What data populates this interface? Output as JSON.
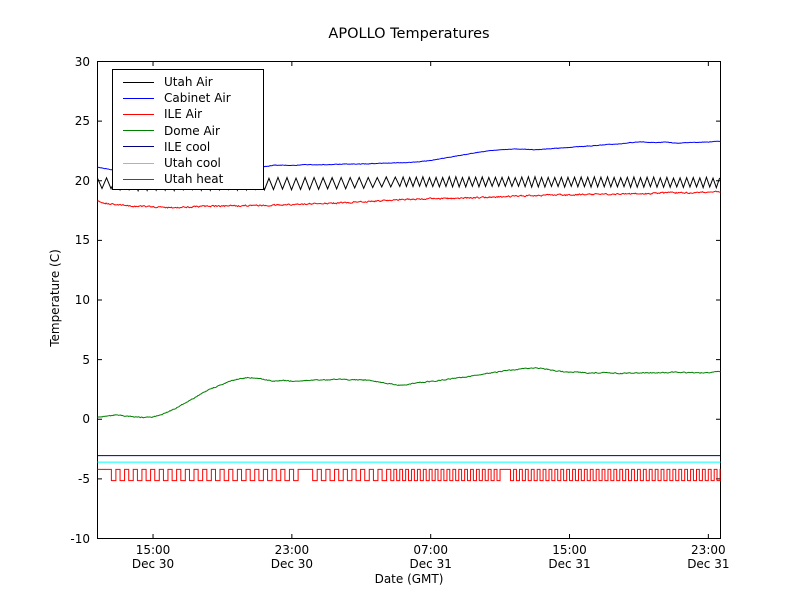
{
  "chart_data": {
    "type": "line",
    "title": "APOLLO Temperatures",
    "xlabel": "Date (GMT)",
    "ylabel": "Temperature (C)",
    "ylim": [
      -10,
      30
    ],
    "yticks": [
      {
        "v": 30,
        "label": "30"
      },
      {
        "v": 25,
        "label": "25"
      },
      {
        "v": 20,
        "label": "20"
      },
      {
        "v": 15,
        "label": "15"
      },
      {
        "v": 10,
        "label": "10"
      },
      {
        "v": 5,
        "label": "5"
      },
      {
        "v": 0,
        "label": "0"
      },
      {
        "v": -5,
        "label": "-5"
      },
      {
        "v": -10,
        "label": "-10"
      }
    ],
    "xlim": [
      -0.2,
      35.7
    ],
    "x_unit": "hours since Dec 30 12:00 GMT",
    "xticks": [
      {
        "t": 3,
        "line1": "15:00",
        "line2": "Dec 30"
      },
      {
        "t": 11,
        "line1": "23:00",
        "line2": "Dec 30"
      },
      {
        "t": 19,
        "line1": "07:00",
        "line2": "Dec 31"
      },
      {
        "t": 27,
        "line1": "15:00",
        "line2": "Dec 31"
      },
      {
        "t": 35,
        "line1": "23:00",
        "line2": "Dec 31"
      }
    ],
    "grid": false,
    "legend_position": "upper-left",
    "series": [
      {
        "name": "Utah Air",
        "color": "#000000",
        "style": "sawtooth",
        "noise": 0.04,
        "base_points": [
          [
            -0.2,
            19.8
          ],
          [
            2,
            19.65
          ],
          [
            6,
            19.7
          ],
          [
            10,
            19.75
          ],
          [
            14,
            19.8
          ],
          [
            17,
            19.9
          ],
          [
            22,
            19.9
          ],
          [
            28,
            19.9
          ],
          [
            35.7,
            19.85
          ]
        ],
        "amp_points": [
          [
            -0.2,
            0.45
          ],
          [
            10,
            0.5
          ],
          [
            15,
            0.45
          ],
          [
            18,
            0.4
          ],
          [
            35.7,
            0.4
          ]
        ],
        "period_segments": [
          {
            "to": 17,
            "period": 0.52
          },
          {
            "to": 35.8,
            "period": 0.38
          }
        ]
      },
      {
        "name": "Cabinet Air",
        "color": "#0000ff",
        "style": "smooth",
        "noise": 0.02,
        "points": [
          [
            -0.2,
            21.15
          ],
          [
            0.5,
            20.95
          ],
          [
            1.5,
            20.85
          ],
          [
            3,
            20.9
          ],
          [
            5,
            21.0
          ],
          [
            7,
            21.05
          ],
          [
            9,
            21.1
          ],
          [
            10,
            21.3
          ],
          [
            11,
            21.3
          ],
          [
            12,
            21.35
          ],
          [
            13,
            21.35
          ],
          [
            14,
            21.4
          ],
          [
            15,
            21.4
          ],
          [
            16,
            21.45
          ],
          [
            17,
            21.5
          ],
          [
            18,
            21.55
          ],
          [
            19,
            21.7
          ],
          [
            20,
            21.95
          ],
          [
            21,
            22.2
          ],
          [
            22,
            22.45
          ],
          [
            22.5,
            22.55
          ],
          [
            23,
            22.6
          ],
          [
            24,
            22.65
          ],
          [
            25,
            22.6
          ],
          [
            26,
            22.7
          ],
          [
            27,
            22.8
          ],
          [
            28,
            22.9
          ],
          [
            29,
            23.0
          ],
          [
            30,
            23.1
          ],
          [
            30.5,
            23.2
          ],
          [
            31,
            23.25
          ],
          [
            32,
            23.2
          ],
          [
            32.5,
            23.25
          ],
          [
            33,
            23.15
          ],
          [
            34,
            23.2
          ],
          [
            35,
            23.25
          ],
          [
            35.7,
            23.3
          ]
        ]
      },
      {
        "name": "ILE Air",
        "color": "#ff0000",
        "style": "smooth",
        "noise": 0.055,
        "points": [
          [
            -0.2,
            18.3
          ],
          [
            0.5,
            18.05
          ],
          [
            1.5,
            17.9
          ],
          [
            3,
            17.8
          ],
          [
            4,
            17.75
          ],
          [
            5,
            17.8
          ],
          [
            6,
            17.85
          ],
          [
            8,
            17.9
          ],
          [
            10,
            17.95
          ],
          [
            12,
            18.05
          ],
          [
            14,
            18.15
          ],
          [
            16,
            18.3
          ],
          [
            17,
            18.4
          ],
          [
            18,
            18.45
          ],
          [
            19,
            18.5
          ],
          [
            20,
            18.5
          ],
          [
            21,
            18.55
          ],
          [
            22,
            18.6
          ],
          [
            23,
            18.65
          ],
          [
            24,
            18.7
          ],
          [
            25,
            18.75
          ],
          [
            26,
            18.8
          ],
          [
            27,
            18.8
          ],
          [
            28,
            18.85
          ],
          [
            29,
            18.85
          ],
          [
            30,
            18.9
          ],
          [
            31,
            18.9
          ],
          [
            32,
            18.95
          ],
          [
            33,
            19.0
          ],
          [
            34,
            19.0
          ],
          [
            35,
            19.05
          ],
          [
            35.7,
            19.1
          ]
        ]
      },
      {
        "name": "Dome Air",
        "color": "#008000",
        "style": "smooth",
        "noise": 0.035,
        "points": [
          [
            -0.2,
            0.15
          ],
          [
            0.3,
            0.25
          ],
          [
            0.8,
            0.35
          ],
          [
            1.2,
            0.3
          ],
          [
            1.8,
            0.2
          ],
          [
            2.4,
            0.15
          ],
          [
            3,
            0.2
          ],
          [
            3.5,
            0.4
          ],
          [
            4,
            0.7
          ],
          [
            4.5,
            1.1
          ],
          [
            5,
            1.5
          ],
          [
            5.5,
            1.9
          ],
          [
            6,
            2.3
          ],
          [
            6.5,
            2.65
          ],
          [
            7,
            2.95
          ],
          [
            7.5,
            3.2
          ],
          [
            8,
            3.4
          ],
          [
            8.5,
            3.5
          ],
          [
            9,
            3.45
          ],
          [
            9.5,
            3.3
          ],
          [
            10,
            3.2
          ],
          [
            10.5,
            3.25
          ],
          [
            11,
            3.2
          ],
          [
            11.5,
            3.2
          ],
          [
            12,
            3.25
          ],
          [
            12.5,
            3.3
          ],
          [
            13,
            3.3
          ],
          [
            13.5,
            3.35
          ],
          [
            14,
            3.35
          ],
          [
            14.5,
            3.3
          ],
          [
            15,
            3.3
          ],
          [
            15.5,
            3.25
          ],
          [
            16,
            3.15
          ],
          [
            16.5,
            3.0
          ],
          [
            17,
            2.9
          ],
          [
            17.3,
            2.85
          ],
          [
            17.8,
            2.95
          ],
          [
            18.5,
            3.1
          ],
          [
            19.5,
            3.25
          ],
          [
            20.5,
            3.45
          ],
          [
            21.5,
            3.65
          ],
          [
            22.5,
            3.9
          ],
          [
            23.5,
            4.1
          ],
          [
            24.5,
            4.25
          ],
          [
            25,
            4.3
          ],
          [
            25.5,
            4.25
          ],
          [
            26,
            4.1
          ],
          [
            26.5,
            4.0
          ],
          [
            27,
            3.95
          ],
          [
            27.5,
            3.95
          ],
          [
            28,
            3.9
          ],
          [
            29,
            3.9
          ],
          [
            30,
            3.85
          ],
          [
            31,
            3.9
          ],
          [
            32,
            3.9
          ],
          [
            33,
            3.95
          ],
          [
            34,
            3.9
          ],
          [
            35,
            3.9
          ],
          [
            35.7,
            4.0
          ]
        ]
      },
      {
        "name": "ILE cool",
        "color": "#000080",
        "style": "smooth",
        "noise": 0,
        "points": [
          [
            -0.2,
            -3.05
          ],
          [
            35.7,
            -3.05
          ]
        ]
      },
      {
        "name": "Utah cool",
        "color": "#00ffff",
        "style": "smooth",
        "noise": 0,
        "points": [
          [
            -0.2,
            -3.6
          ],
          [
            35.7,
            -3.6
          ]
        ]
      },
      {
        "name": "Utah heat",
        "color": "#ff0000",
        "style": "square",
        "noise": 0,
        "high": -4.2,
        "low": -5.15,
        "duty": 0.48,
        "period_segments": [
          {
            "to": 16.5,
            "period": 0.5
          },
          {
            "to": 35.8,
            "period": 0.34
          }
        ],
        "long_high": [
          [
            -0.2,
            0.6
          ],
          [
            11.4,
            12.2
          ],
          [
            23.1,
            23.6
          ]
        ]
      }
    ]
  }
}
